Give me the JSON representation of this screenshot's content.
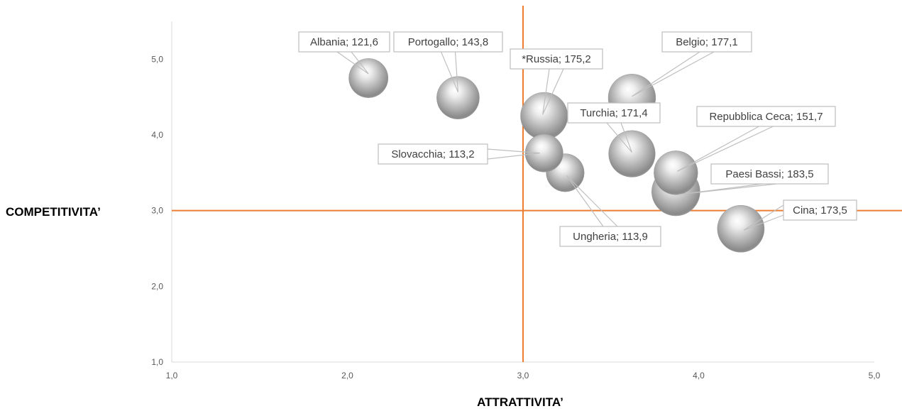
{
  "chart_data": {
    "type": "bubble",
    "xlabel": "ATTRATTIVITA’",
    "ylabel": "COMPETITIVITA’",
    "xlim": [
      1.0,
      5.0
    ],
    "ylim": [
      1.0,
      5.5
    ],
    "x_ticks": [
      "1,0",
      "2,0",
      "3,0",
      "4,0",
      "5,0"
    ],
    "y_ticks": [
      "1,0",
      "2,0",
      "3,0",
      "4,0",
      "5,0"
    ],
    "reference_lines": {
      "x": 3.0,
      "y": 3.0,
      "color": "#ed7d31"
    },
    "grid": false,
    "bubble_color": "#a6a6a6",
    "points": [
      {
        "name": "Albania",
        "label": "Albania; 121,6",
        "x": 2.12,
        "y": 4.75,
        "size": 121.6
      },
      {
        "name": "Portogallo",
        "label": "Portogallo; 143,8",
        "x": 2.63,
        "y": 4.49,
        "size": 143.8
      },
      {
        "name": "Russia",
        "label": "*Russia; 175,2",
        "x": 3.12,
        "y": 4.25,
        "size": 175.2
      },
      {
        "name": "Belgio",
        "label": "Belgio; 177,1",
        "x": 3.62,
        "y": 4.49,
        "size": 177.1
      },
      {
        "name": "Turchia",
        "label": "Turchia; 171,4",
        "x": 3.62,
        "y": 3.75,
        "size": 171.4
      },
      {
        "name": "Slovacchia",
        "label": "Slovacchia; 113,2",
        "x": 3.12,
        "y": 3.76,
        "size": 113.2
      },
      {
        "name": "Ungheria",
        "label": "Ungheria; 113,9",
        "x": 3.24,
        "y": 3.5,
        "size": 113.9
      },
      {
        "name": "Repubblica Ceca",
        "label": "Repubblica Ceca; 151,7",
        "x": 3.87,
        "y": 3.5,
        "size": 151.7
      },
      {
        "name": "Paesi Bassi",
        "label": "Paesi Bassi; 183,5",
        "x": 3.87,
        "y": 3.25,
        "size": 183.5
      },
      {
        "name": "Cina",
        "label": "Cina; 173,5",
        "x": 4.24,
        "y": 2.76,
        "size": 173.5
      }
    ]
  }
}
